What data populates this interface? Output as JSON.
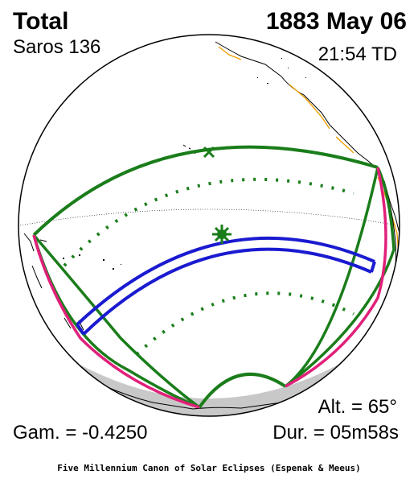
{
  "header": {
    "eclipse_type": "Total",
    "saros": "Saros 136",
    "date": "1883 May 06",
    "time": "21:54 TD"
  },
  "footer": {
    "altitude": "Alt. = 65°",
    "gamma": "Gam. = -0.4250",
    "duration": "Dur. = 05m58s",
    "credit": "Five Millennium Canon of Solar Eclipses (Espenak & Meeus)"
  },
  "colors": {
    "penumbral_limits": "#1a7d1a",
    "totality_path": "#1a1ad0",
    "rise_set_curve": "#e0207a",
    "coastline": "#000000",
    "political_border": "#f0a000",
    "night_side": "#c8c8c8"
  },
  "icons": {
    "greatest_eclipse": "asterisk-icon",
    "sub_solar_point": "cross-icon"
  }
}
